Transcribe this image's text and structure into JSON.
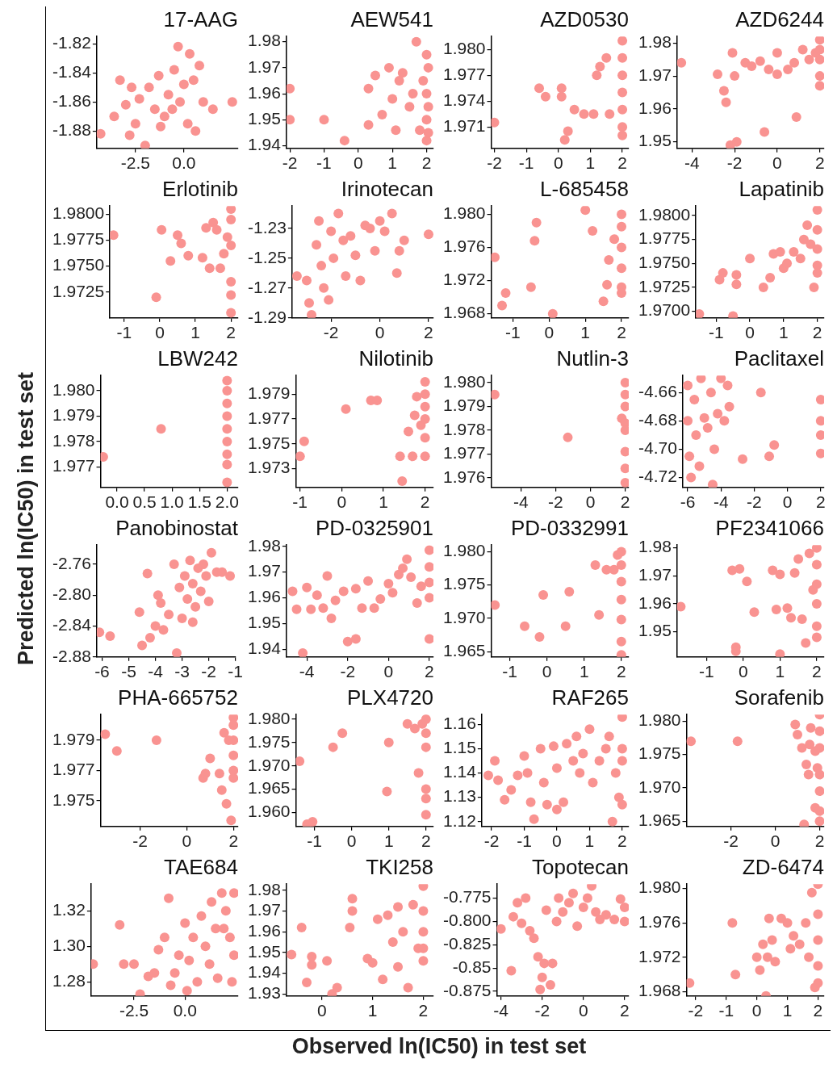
{
  "chart_data": [
    {
      "type": "scatter",
      "title": "17-AAG",
      "color": "#f99391",
      "marker": "circle",
      "xlim": [
        -4.5,
        2.8
      ],
      "ylim": [
        -1.892,
        -1.815
      ],
      "xticks": [
        {
          "value": -2.5,
          "label": "-2.5"
        },
        {
          "value": 0,
          "label": "0.0"
        }
      ],
      "yticks": [
        -1.88,
        -1.86,
        -1.84,
        -1.82
      ],
      "x": [
        -4.3,
        -3.6,
        -3.3,
        -3.0,
        -2.8,
        -2.5,
        -2.3,
        -2.0,
        -1.8,
        -1.5,
        -1.3,
        -1.0,
        -0.8,
        -0.5,
        -0.3,
        -0.2,
        0.0,
        0.2,
        0.3,
        0.5,
        0.8,
        0.6,
        1.0,
        1.5,
        2.5,
        -2.7,
        -1.2,
        -0.6
      ],
      "values": [
        -1.882,
        -1.87,
        -1.845,
        -1.862,
        -1.883,
        -1.875,
        -1.858,
        -1.89,
        -1.85,
        -1.865,
        -1.842,
        -1.87,
        -1.855,
        -1.838,
        -1.822,
        -1.86,
        -1.848,
        -1.875,
        -1.827,
        -1.845,
        -1.835,
        -1.88,
        -1.86,
        -1.865,
        -1.86,
        -1.85,
        -1.877,
        -1.865
      ]
    },
    {
      "type": "scatter",
      "title": "AEW541",
      "color": "#f99391",
      "marker": "circle",
      "xlim": [
        -2.1,
        2.2
      ],
      "ylim": [
        1.939,
        1.982
      ],
      "xticks": [
        -2,
        -1,
        0,
        1,
        2
      ],
      "yticks": [
        1.94,
        1.95,
        1.96,
        1.97,
        1.98
      ],
      "x": [
        -2,
        -2,
        -1,
        -0.4,
        0.3,
        0.3,
        0.5,
        0.7,
        0.9,
        1.0,
        1.1,
        1.2,
        1.3,
        1.5,
        1.6,
        1.7,
        1.8,
        1.9,
        2.0,
        2.0,
        2.0,
        2.0,
        2.05,
        2.05,
        2.05
      ],
      "values": [
        1.962,
        1.95,
        1.95,
        1.942,
        1.962,
        1.948,
        1.967,
        1.952,
        1.97,
        1.958,
        1.946,
        1.965,
        1.968,
        1.955,
        1.96,
        1.98,
        1.946,
        1.965,
        1.975,
        1.96,
        1.95,
        1.942,
        1.97,
        1.955,
        1.945
      ]
    },
    {
      "type": "scatter",
      "title": "AZD0530",
      "color": "#f99391",
      "marker": "circle",
      "xlim": [
        -2.1,
        2.2
      ],
      "ylim": [
        1.9685,
        1.9815
      ],
      "xticks": [
        -2,
        -1,
        0,
        1,
        2
      ],
      "yticks": [
        1.971,
        1.974,
        1.977,
        {
          "value": 1.98,
          "label": "1.980"
        }
      ],
      "x": [
        -2,
        -0.6,
        -0.4,
        0.1,
        0.1,
        0.2,
        0.3,
        0.5,
        0.8,
        1.1,
        1.2,
        1.3,
        1.5,
        1.6,
        2.0,
        2.0,
        2.0,
        2.0,
        2.0,
        2.0,
        2.0
      ],
      "values": [
        1.9715,
        1.9755,
        1.9745,
        1.9755,
        1.9745,
        1.9695,
        1.9705,
        1.973,
        1.9725,
        1.9725,
        1.977,
        1.978,
        1.979,
        1.9725,
        1.981,
        1.979,
        1.977,
        1.975,
        1.973,
        1.971,
        1.97
      ]
    },
    {
      "type": "scatter",
      "title": "AZD6244",
      "color": "#f99391",
      "marker": "circle",
      "xlim": [
        -4.7,
        2.2
      ],
      "ylim": [
        1.948,
        1.982
      ],
      "xticks": [
        -4,
        -2,
        0,
        2
      ],
      "yticks": [
        1.95,
        1.96,
        1.97,
        1.98
      ],
      "x": [
        -4.5,
        -2.8,
        -2.5,
        -2.4,
        -2.1,
        -2.2,
        -1.9,
        -2,
        -1.5,
        -1.2,
        -0.8,
        -0.6,
        -0.4,
        0,
        0,
        0.5,
        0.8,
        0.9,
        1.2,
        1.5,
        1.8,
        2.0,
        2.0,
        2.0,
        2.0,
        2.0
      ],
      "values": [
        1.974,
        1.9705,
        1.9655,
        1.962,
        1.977,
        1.949,
        1.95,
        1.97,
        1.974,
        1.973,
        1.9745,
        1.953,
        1.972,
        1.977,
        1.9705,
        1.972,
        1.974,
        1.9575,
        1.978,
        1.975,
        1.977,
        1.981,
        1.978,
        1.975,
        1.967,
        1.97
      ]
    },
    {
      "type": "scatter",
      "title": "Erlotinib",
      "color": "#f99391",
      "marker": "circle",
      "xlim": [
        -1.4,
        2.2
      ],
      "ylim": [
        1.97,
        1.9808
      ],
      "xticks": [
        -1,
        0,
        1,
        2
      ],
      "yticks": [
        1.9725,
        {
          "value": 1.975,
          "label": "1.9750"
        },
        1.9775,
        {
          "value": 1.98,
          "label": "1.9800"
        }
      ],
      "x": [
        -1.3,
        -0.1,
        0.05,
        0.3,
        0.5,
        0.6,
        0.8,
        1.2,
        1.3,
        1.4,
        1.5,
        1.6,
        1.7,
        1.8,
        1.9,
        2.0,
        2.0,
        2.0,
        2.0,
        2.0,
        2.0
      ],
      "values": [
        1.978,
        1.972,
        1.9785,
        1.9755,
        1.978,
        1.9772,
        1.976,
        1.9758,
        1.9787,
        1.9748,
        1.9792,
        1.9785,
        1.9748,
        1.9762,
        1.9778,
        1.9805,
        1.9795,
        1.977,
        1.9735,
        1.9722,
        1.9705
      ]
    },
    {
      "type": "scatter",
      "title": "Irinotecan",
      "color": "#f99391",
      "marker": "circle",
      "xlim": [
        -3.6,
        2.2
      ],
      "ylim": [
        -1.29,
        -1.215
      ],
      "xticks": [
        -2,
        0,
        2
      ],
      "yticks": [
        -1.29,
        -1.27,
        -1.25,
        -1.23
      ],
      "x": [
        -3.4,
        -3.0,
        -2.9,
        -2.6,
        -2.5,
        -2.4,
        -2.3,
        -2.1,
        -2.0,
        -1.9,
        -1.7,
        -1.5,
        -1.4,
        -1.2,
        -1.0,
        -0.8,
        -0.6,
        -0.4,
        -0.2,
        0.0,
        0.2,
        0.5,
        0.7,
        0.8,
        1.0,
        2.0,
        -2.8
      ],
      "values": [
        -1.262,
        -1.265,
        -1.28,
        -1.241,
        -1.225,
        -1.255,
        -1.27,
        -1.278,
        -1.232,
        -1.25,
        -1.22,
        -1.238,
        -1.262,
        -1.235,
        -1.248,
        -1.265,
        -1.228,
        -1.23,
        -1.245,
        -1.225,
        -1.232,
        -1.22,
        -1.26,
        -1.245,
        -1.238,
        -1.234,
        -1.288
      ]
    },
    {
      "type": "scatter",
      "title": "L-685458",
      "color": "#f99391",
      "marker": "circle",
      "xlim": [
        -1.6,
        2.2
      ],
      "ylim": [
        1.9675,
        1.981
      ],
      "xticks": [
        -1,
        0,
        1,
        2
      ],
      "yticks": [
        1.968,
        1.972,
        1.976,
        {
          "value": 1.98,
          "label": "1.980"
        }
      ],
      "x": [
        -1.5,
        -1.3,
        -1.2,
        -0.5,
        -0.4,
        -0.35,
        0.1,
        1.0,
        1.2,
        1.5,
        1.6,
        1.65,
        1.8,
        2.0,
        2.0,
        2.0,
        2.0,
        2.0,
        2.0
      ],
      "values": [
        1.9748,
        1.969,
        1.9705,
        1.9712,
        1.9768,
        1.979,
        1.968,
        1.9805,
        1.978,
        1.9695,
        1.9715,
        1.9745,
        1.977,
        1.98,
        1.9785,
        1.976,
        1.9735,
        1.9712,
        1.9705
      ]
    },
    {
      "type": "scatter",
      "title": "Lapatinib",
      "color": "#f99391",
      "marker": "circle",
      "xlim": [
        -1.6,
        2.2
      ],
      "ylim": [
        1.9693,
        1.981
      ],
      "xticks": [
        -1,
        0,
        1,
        2
      ],
      "yticks": [
        {
          "value": 1.97,
          "label": "1.9700"
        },
        1.9725,
        {
          "value": 1.975,
          "label": "1.9750"
        },
        1.9775,
        {
          "value": 1.98,
          "label": "1.9800"
        }
      ],
      "x": [
        -1.5,
        -0.9,
        -0.8,
        -0.5,
        -0.4,
        -0.4,
        0.0,
        0.4,
        0.6,
        0.7,
        0.9,
        1.0,
        1.1,
        1.3,
        1.5,
        1.6,
        1.7,
        1.8,
        1.9,
        2.0,
        2.0,
        2.0,
        2.0,
        2.0
      ],
      "values": [
        1.9697,
        1.9733,
        1.974,
        1.9695,
        1.9738,
        1.9728,
        1.9755,
        1.9725,
        1.9735,
        1.976,
        1.9762,
        1.9745,
        1.975,
        1.9762,
        1.9755,
        1.9775,
        1.979,
        1.977,
        1.9725,
        1.9806,
        1.9785,
        1.9765,
        1.9748,
        1.974
      ]
    },
    {
      "type": "scatter",
      "title": "LBW242",
      "ylabel": "Predicted ln(IC50) in test set",
      "color": "#f99391",
      "marker": "circle",
      "xlim": [
        -0.3,
        2.2
      ],
      "ylim": [
        1.9762,
        1.9806
      ],
      "xticks": [
        {
          "value": 0,
          "label": "0.0"
        },
        0.5,
        {
          "value": 1,
          "label": "1.0"
        },
        1.5,
        {
          "value": 2,
          "label": "2.0"
        }
      ],
      "yticks": [
        1.977,
        1.978,
        1.979,
        {
          "value": 1.98,
          "label": "1.980"
        }
      ],
      "x": [
        -0.25,
        0.8,
        2.0,
        2.0,
        2.0,
        2.0,
        2.0,
        2.0,
        2.0,
        2.0,
        2.0
      ],
      "values": [
        1.9774,
        1.9785,
        1.9804,
        1.98,
        1.9795,
        1.979,
        1.9785,
        1.978,
        1.9775,
        1.9771,
        1.9764
      ]
    },
    {
      "type": "scatter",
      "title": "Nilotinib",
      "color": "#f99391",
      "marker": "circle",
      "xlim": [
        -1.1,
        2.2
      ],
      "ylim": [
        1.9715,
        1.9805
      ],
      "xticks": [
        -1,
        0,
        1,
        2
      ],
      "yticks": [
        1.973,
        1.975,
        1.977,
        1.979
      ],
      "x": [
        -1.0,
        -0.9,
        0.1,
        0.7,
        0.85,
        1.4,
        1.45,
        1.6,
        1.7,
        1.75,
        1.8,
        1.9,
        2.0,
        2.0,
        2.0,
        2.0,
        2.0,
        2.0
      ],
      "values": [
        1.974,
        1.9752,
        1.9778,
        1.9785,
        1.9785,
        1.974,
        1.972,
        1.976,
        1.974,
        1.9773,
        1.9788,
        1.9765,
        1.98,
        1.979,
        1.978,
        1.977,
        1.9755,
        1.974
      ]
    },
    {
      "type": "scatter",
      "title": "Nutlin-3",
      "color": "#f99391",
      "marker": "circle",
      "xlim": [
        -5.7,
        2.2
      ],
      "ylim": [
        1.9756,
        1.9803
      ],
      "xticks": [
        -4,
        -2,
        0,
        2
      ],
      "yticks": [
        1.976,
        1.977,
        1.978,
        1.979,
        {
          "value": 1.98,
          "label": "1.980"
        }
      ],
      "x": [
        -5.5,
        -1.3,
        1.8,
        2.0,
        2.0,
        2.0,
        2.0,
        2.0,
        2.0,
        2.0,
        2.0
      ],
      "values": [
        1.9795,
        1.9777,
        1.9785,
        1.98,
        1.9795,
        1.979,
        1.9783,
        1.978,
        1.9771,
        1.9764,
        1.9758
      ]
    },
    {
      "type": "scatter",
      "title": "Paclitaxel",
      "color": "#f99391",
      "marker": "circle",
      "xlim": [
        -6.3,
        2.2
      ],
      "ylim": [
        -4.727,
        -4.648
      ],
      "xticks": [
        -6,
        -4,
        -2,
        0,
        2
      ],
      "yticks": [
        -4.72,
        {
          "value": -4.7,
          "label": "-4.70"
        },
        -4.68,
        -4.66
      ],
      "x": [
        -6.0,
        -6.0,
        -5.9,
        -5.8,
        -5.6,
        -5.5,
        -5.3,
        -5.2,
        -5.0,
        -4.8,
        -4.6,
        -4.5,
        -4.4,
        -4.2,
        -4.0,
        -3.8,
        -3.6,
        -3.5,
        -2.7,
        -1.6,
        -1.1,
        -0.8,
        2.0,
        2.0,
        2.0,
        2.0
      ],
      "values": [
        -4.655,
        -4.68,
        -4.705,
        -4.72,
        -4.665,
        -4.69,
        -4.712,
        -4.65,
        -4.678,
        -4.685,
        -4.66,
        -4.725,
        -4.7,
        -4.675,
        -4.65,
        -4.68,
        -4.655,
        -4.67,
        -4.707,
        -4.66,
        -4.705,
        -4.697,
        -4.665,
        -4.68,
        -4.69,
        -4.703
      ]
    },
    {
      "type": "scatter",
      "title": "Panobinostat",
      "color": "#f99391",
      "marker": "circle",
      "xlim": [
        -6.2,
        -1
      ],
      "ylim": [
        -2.88,
        -2.735
      ],
      "xticks": [
        -6,
        -5,
        -4,
        -3,
        -2,
        -1
      ],
      "yticks": [
        -2.88,
        -2.84,
        {
          "value": -2.8,
          "label": "-2.80"
        },
        -2.76
      ],
      "x": [
        -6.1,
        -5.7,
        -4.6,
        -4.5,
        -4.3,
        -4.2,
        -4.0,
        -3.9,
        -3.8,
        -3.7,
        -3.5,
        -3.3,
        -3.2,
        -3.1,
        -3.0,
        -2.9,
        -2.8,
        -2.7,
        -2.6,
        -2.5,
        -2.4,
        -2.3,
        -2.2,
        -2.1,
        -2.0,
        -1.9,
        -1.7,
        -1.5,
        -1.2,
        -2.6
      ],
      "values": [
        -2.848,
        -2.853,
        -2.822,
        -2.865,
        -2.772,
        -2.855,
        -2.84,
        -2.8,
        -2.81,
        -2.845,
        -2.825,
        -2.76,
        -2.875,
        -2.79,
        -2.83,
        -2.775,
        -2.805,
        -2.755,
        -2.785,
        -2.815,
        -2.765,
        -2.795,
        -2.76,
        -2.775,
        -2.808,
        -2.745,
        -2.77,
        -2.77,
        -2.775,
        -2.835
      ]
    },
    {
      "type": "scatter",
      "title": "PD-0325901",
      "color": "#f99391",
      "marker": "circle",
      "xlim": [
        -5,
        2.2
      ],
      "ylim": [
        1.937,
        1.9805
      ],
      "xticks": [
        -4,
        -2,
        0,
        2
      ],
      "yticks": [
        1.94,
        1.95,
        1.96,
        1.97,
        1.98
      ],
      "x": [
        -4.7,
        -4.5,
        -4.2,
        -4.0,
        -3.8,
        -3.5,
        -3.2,
        -3.0,
        -2.8,
        -2.6,
        -2.2,
        -2.0,
        -1.6,
        -1.6,
        -1.3,
        -1.0,
        -0.7,
        -0.4,
        0.0,
        0.2,
        0.5,
        0.7,
        0.9,
        1.1,
        1.4,
        1.6,
        2.0,
        2.0,
        2.0,
        2.0,
        2.0
      ],
      "values": [
        1.9625,
        1.9555,
        1.9385,
        1.964,
        1.9555,
        1.961,
        1.956,
        1.9685,
        1.952,
        1.959,
        1.9625,
        1.943,
        1.944,
        1.9635,
        1.956,
        1.9665,
        1.956,
        1.9595,
        1.9655,
        1.962,
        1.969,
        1.9715,
        1.975,
        1.968,
        1.958,
        1.9645,
        1.9785,
        1.972,
        1.966,
        1.96,
        1.944
      ]
    },
    {
      "type": "scatter",
      "title": "PD-0332991",
      "color": "#f99391",
      "marker": "circle",
      "xlim": [
        -1.5,
        2.2
      ],
      "ylim": [
        1.9642,
        1.981
      ],
      "xticks": [
        -1,
        0,
        1,
        2
      ],
      "yticks": [
        1.965,
        {
          "value": 1.97,
          "label": "1.970"
        },
        1.975,
        {
          "value": 1.98,
          "label": "1.980"
        }
      ],
      "x": [
        -1.4,
        -0.6,
        -0.2,
        -0.1,
        0.5,
        0.6,
        1.3,
        1.4,
        1.6,
        1.8,
        1.9,
        2.0,
        2.0,
        2.0,
        2.0,
        2.0,
        2.0,
        2.0
      ],
      "values": [
        1.972,
        1.9688,
        1.9672,
        1.9735,
        1.9688,
        1.974,
        1.978,
        1.9705,
        1.9773,
        1.9773,
        1.9795,
        1.98,
        1.978,
        1.9755,
        1.9728,
        1.9698,
        1.9665,
        1.9645
      ]
    },
    {
      "type": "scatter",
      "title": "PF2341066",
      "color": "#f99391",
      "marker": "circle",
      "xlim": [
        -1.8,
        2.2
      ],
      "ylim": [
        1.941,
        1.981
      ],
      "xticks": [
        -1,
        0,
        1,
        2
      ],
      "yticks": [
        1.95,
        1.96,
        1.97,
        1.98
      ],
      "x": [
        -1.7,
        -0.3,
        -0.1,
        -0.2,
        -0.2,
        0.1,
        0.3,
        0.8,
        0.9,
        1.0,
        1.0,
        1.2,
        1.3,
        1.4,
        1.5,
        1.6,
        1.7,
        1.8,
        1.9,
        2.0,
        2.0,
        2.0,
        2.0,
        2.0,
        2.0
      ],
      "values": [
        1.959,
        1.972,
        1.9725,
        1.9445,
        1.943,
        1.968,
        1.957,
        1.972,
        1.958,
        1.9705,
        1.942,
        1.9585,
        1.955,
        1.971,
        1.976,
        1.9545,
        1.946,
        1.978,
        1.965,
        1.98,
        1.974,
        1.967,
        1.96,
        1.952,
        1.948
      ]
    },
    {
      "type": "scatter",
      "title": "PHA-665752",
      "color": "#f99391",
      "marker": "circle",
      "xlim": [
        -3.7,
        2.2
      ],
      "ylim": [
        1.9733,
        1.9807
      ],
      "xticks": [
        -2,
        0,
        2
      ],
      "yticks": [
        1.975,
        1.977,
        1.979
      ],
      "x": [
        -3.5,
        -3.0,
        -1.3,
        0.7,
        0.8,
        1.0,
        1.4,
        1.5,
        1.6,
        1.7,
        1.8,
        1.9,
        2.0,
        2.0,
        2.0,
        2.0,
        2.0,
        2.0
      ],
      "values": [
        1.9794,
        1.9783,
        1.979,
        1.9765,
        1.9768,
        1.9778,
        1.9768,
        1.9757,
        1.9795,
        1.9748,
        1.979,
        1.9737,
        1.9805,
        1.98,
        1.979,
        1.978,
        1.977,
        1.9765
      ]
    },
    {
      "type": "scatter",
      "title": "PLX4720",
      "color": "#f99391",
      "marker": "circle",
      "xlim": [
        -1.5,
        2.2
      ],
      "ylim": [
        1.957,
        1.981
      ],
      "xticks": [
        -1,
        0,
        1,
        2
      ],
      "yticks": [
        {
          "value": 1.96,
          "label": "1.960"
        },
        1.965,
        {
          "value": 1.97,
          "label": "1.970"
        },
        1.975,
        {
          "value": 1.98,
          "label": "1.980"
        }
      ],
      "x": [
        -1.4,
        -1.2,
        -1.05,
        -0.5,
        -0.25,
        0.95,
        1.0,
        1.5,
        1.7,
        1.8,
        1.9,
        2.0,
        2.0,
        2.0,
        2.0,
        2.0,
        2.0
      ],
      "values": [
        1.971,
        1.9575,
        1.958,
        1.974,
        1.977,
        1.9645,
        1.975,
        1.979,
        1.978,
        1.9685,
        1.979,
        1.98,
        1.977,
        1.974,
        1.965,
        1.963,
        1.9595
      ]
    },
    {
      "type": "scatter",
      "title": "RAF265",
      "color": "#f99391",
      "marker": "circle",
      "xlim": [
        -2.3,
        2.2
      ],
      "ylim": [
        1.118,
        1.164
      ],
      "xticks": [
        -2,
        -1,
        0,
        1,
        2
      ],
      "yticks": [
        1.12,
        1.13,
        1.14,
        1.15,
        1.16
      ],
      "x": [
        -2.1,
        -1.9,
        -1.8,
        -1.6,
        -1.4,
        -1.2,
        -1.0,
        -0.9,
        -0.8,
        -0.7,
        -0.5,
        -0.4,
        -0.3,
        -0.1,
        0.0,
        0.0,
        0.2,
        0.3,
        0.5,
        0.6,
        0.7,
        0.8,
        1.0,
        1.1,
        1.3,
        1.5,
        1.6,
        1.7,
        1.8,
        1.9,
        2.0,
        2.0,
        2.0,
        2.0
      ],
      "values": [
        1.139,
        1.145,
        1.137,
        1.129,
        1.133,
        1.139,
        1.147,
        1.14,
        1.128,
        1.121,
        1.15,
        1.136,
        1.127,
        1.151,
        1.142,
        1.125,
        1.128,
        1.152,
        1.145,
        1.155,
        1.14,
        1.148,
        1.158,
        1.136,
        1.145,
        1.15,
        1.155,
        1.12,
        1.14,
        1.13,
        1.163,
        1.15,
        1.145,
        1.127
      ]
    },
    {
      "type": "scatter",
      "title": "Sorafenib",
      "color": "#f99391",
      "marker": "circle",
      "xlim": [
        -4,
        2.2
      ],
      "ylim": [
        1.9642,
        1.981
      ],
      "xticks": [
        -2,
        0,
        2
      ],
      "yticks": [
        1.965,
        {
          "value": 1.97,
          "label": "1.970"
        },
        1.975,
        {
          "value": 1.98,
          "label": "1.980"
        }
      ],
      "x": [
        -3.8,
        -1.7,
        0.9,
        1.0,
        1.2,
        1.3,
        1.4,
        1.5,
        1.6,
        1.55,
        1.8,
        1.8,
        1.9,
        2.0,
        2.0,
        2.0,
        2.0,
        2.0,
        2.0,
        2.0
      ],
      "values": [
        1.977,
        1.977,
        1.9795,
        1.978,
        1.976,
        1.9645,
        1.9735,
        1.972,
        1.979,
        1.9765,
        1.967,
        1.9755,
        1.973,
        1.981,
        1.9785,
        1.976,
        1.972,
        1.9695,
        1.9665,
        1.965
      ]
    },
    {
      "type": "scatter",
      "title": "TAE684",
      "color": "#f99391",
      "marker": "circle",
      "xlim": [
        -4.6,
        2.6
      ],
      "ylim": [
        1.272,
        1.335
      ],
      "xticks": [
        {
          "value": -2.5,
          "label": "-2.5"
        },
        {
          "value": 0,
          "label": "0.0"
        }
      ],
      "yticks": [
        1.28,
        {
          "value": 1.3,
          "label": "1.30"
        },
        1.32
      ],
      "x": [
        -4.5,
        -3.2,
        -3.0,
        -2.5,
        -2.2,
        -1.8,
        -1.5,
        -1.3,
        -1.0,
        -0.8,
        -0.7,
        -0.5,
        -0.3,
        0.0,
        0.1,
        0.2,
        0.4,
        0.6,
        0.8,
        1.0,
        1.2,
        1.3,
        1.5,
        1.6,
        1.8,
        2.0,
        2.2,
        2.3,
        2.4,
        2.4,
        1.9
      ],
      "values": [
        1.29,
        1.312,
        1.29,
        1.29,
        1.273,
        1.283,
        1.285,
        1.298,
        1.305,
        1.327,
        1.278,
        1.285,
        1.295,
        1.313,
        1.275,
        1.292,
        1.305,
        1.28,
        1.317,
        1.3,
        1.29,
        1.325,
        1.31,
        1.282,
        1.33,
        1.32,
        1.305,
        1.28,
        1.33,
        1.295,
        1.31
      ]
    },
    {
      "type": "scatter",
      "title": "TKI258",
      "color": "#f99391",
      "marker": "circle",
      "xlim": [
        -0.7,
        2.2
      ],
      "ylim": [
        1.929,
        1.983
      ],
      "xticks": [
        0,
        1,
        2
      ],
      "yticks": [
        1.93,
        1.94,
        1.95,
        1.96,
        1.97,
        1.98
      ],
      "x": [
        -0.6,
        -0.4,
        -0.2,
        -0.2,
        -0.3,
        0.1,
        0.2,
        0.3,
        0.55,
        0.6,
        0.6,
        0.9,
        1.0,
        1.1,
        1.2,
        1.3,
        1.4,
        1.5,
        1.5,
        1.6,
        1.7,
        1.8,
        1.9,
        2.0,
        2.0,
        2.0,
        2.0,
        2.0
      ],
      "values": [
        1.949,
        1.962,
        1.944,
        1.948,
        1.9355,
        1.946,
        1.93,
        1.933,
        1.962,
        1.976,
        1.97,
        1.947,
        1.945,
        1.966,
        1.937,
        1.968,
        1.955,
        1.972,
        1.943,
        1.96,
        1.933,
        1.973,
        1.952,
        1.982,
        1.97,
        1.96,
        1.952,
        1.946
      ]
    },
    {
      "type": "scatter",
      "title": "Topotecan",
      "xlabel": "Observed ln(IC50) in test set",
      "color": "#f99391",
      "marker": "circle",
      "xlim": [
        -4.2,
        2.2
      ],
      "ylim": [
        -0.88,
        -0.76
      ],
      "xticks": [
        -4,
        -2,
        0,
        2
      ],
      "yticks": [
        -0.875,
        -0.85,
        -0.825,
        {
          "value": -0.8,
          "label": "-0.800"
        },
        -0.775
      ],
      "x": [
        -4.0,
        -3.5,
        -3.4,
        -3.2,
        -3.0,
        -2.8,
        -2.6,
        -2.4,
        -2.2,
        -2.1,
        -2.0,
        -1.9,
        -1.8,
        -1.6,
        -1.5,
        -1.3,
        -1.2,
        -1.0,
        -0.7,
        -0.5,
        -0.3,
        0.0,
        0.2,
        0.4,
        0.6,
        0.8,
        1.1,
        1.5,
        1.8,
        2.0,
        2.0
      ],
      "values": [
        -0.808,
        -0.853,
        -0.795,
        -0.78,
        -0.802,
        -0.775,
        -0.81,
        -0.818,
        -0.838,
        -0.873,
        -0.86,
        -0.845,
        -0.788,
        -0.868,
        -0.845,
        -0.8,
        -0.775,
        -0.79,
        -0.78,
        -0.77,
        -0.805,
        -0.785,
        -0.775,
        -0.762,
        -0.79,
        -0.798,
        -0.793,
        -0.798,
        -0.776,
        -0.785,
        -0.8
      ]
    },
    {
      "type": "scatter",
      "title": "ZD-6474",
      "color": "#f99391",
      "marker": "circle",
      "xlim": [
        -2.3,
        2.2
      ],
      "ylim": [
        1.9675,
        1.9805
      ],
      "xticks": [
        -2,
        -1,
        0,
        1,
        2
      ],
      "yticks": [
        1.968,
        1.972,
        1.976,
        {
          "value": 1.98,
          "label": "1.980"
        }
      ],
      "x": [
        -2.2,
        -0.8,
        -0.7,
        0.0,
        0.1,
        0.2,
        0.3,
        0.35,
        0.4,
        0.5,
        0.6,
        0.8,
        1.0,
        1.1,
        1.2,
        1.4,
        1.6,
        1.7,
        1.8,
        1.9,
        2.0,
        2.0,
        2.0,
        2.0,
        2.0
      ],
      "values": [
        1.969,
        1.976,
        1.97,
        1.972,
        1.9705,
        1.9735,
        1.9675,
        1.972,
        1.9765,
        1.974,
        1.9715,
        1.9765,
        1.976,
        1.973,
        1.9745,
        1.9735,
        1.976,
        1.972,
        1.9795,
        1.9685,
        1.9805,
        1.977,
        1.974,
        1.971,
        1.969
      ]
    }
  ]
}
